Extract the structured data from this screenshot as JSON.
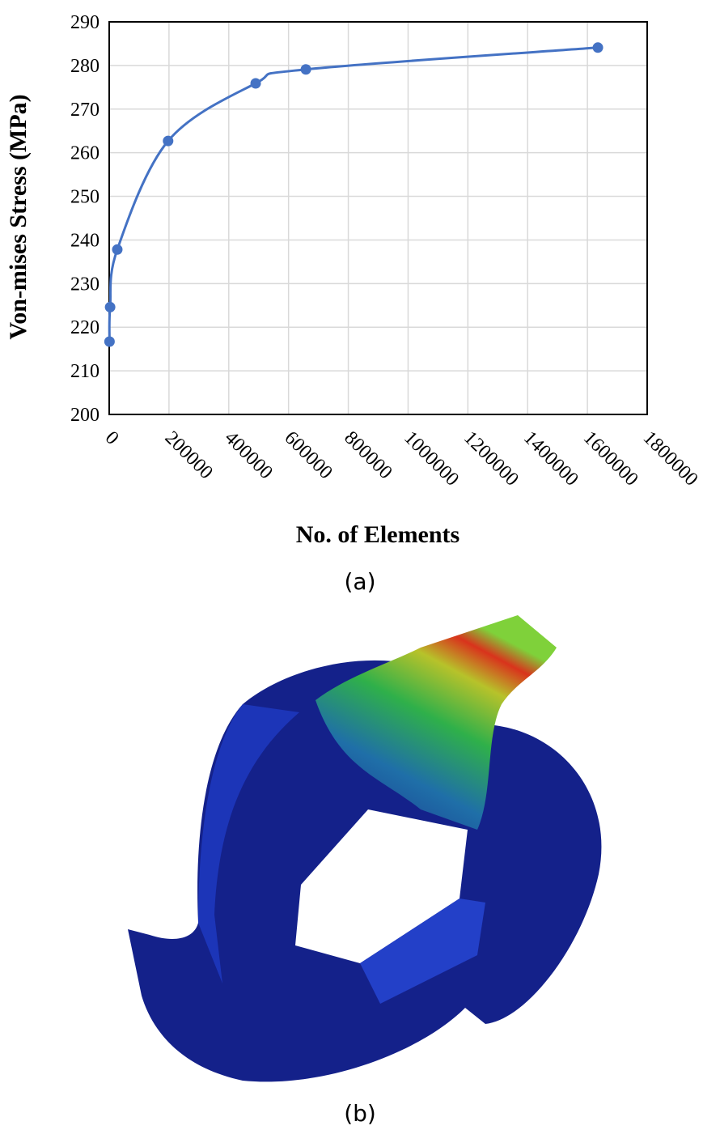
{
  "chart_data": {
    "type": "line",
    "x_label": "No. of Elements",
    "y_label": "Von-mises Stress (MPa)",
    "x": [
      1000,
      3000,
      27000,
      197000,
      490000,
      658000,
      1635000
    ],
    "series": [
      {
        "name": "Von-mises Stress",
        "color": "#4472c4",
        "values": [
          216.7,
          224.6,
          237.8,
          262.7,
          275.9,
          279.1,
          284.1
        ]
      }
    ],
    "xlim": [
      0,
      1800000
    ],
    "xticks": [
      0,
      200000,
      400000,
      600000,
      800000,
      1000000,
      1200000,
      1400000,
      1600000,
      1800000
    ],
    "ylim": [
      200,
      290
    ],
    "yticks": [
      200,
      210,
      220,
      230,
      240,
      250,
      260,
      270,
      280,
      290
    ],
    "grid": true,
    "smooth": true
  },
  "captions": [
    "(a)",
    "(b)"
  ]
}
